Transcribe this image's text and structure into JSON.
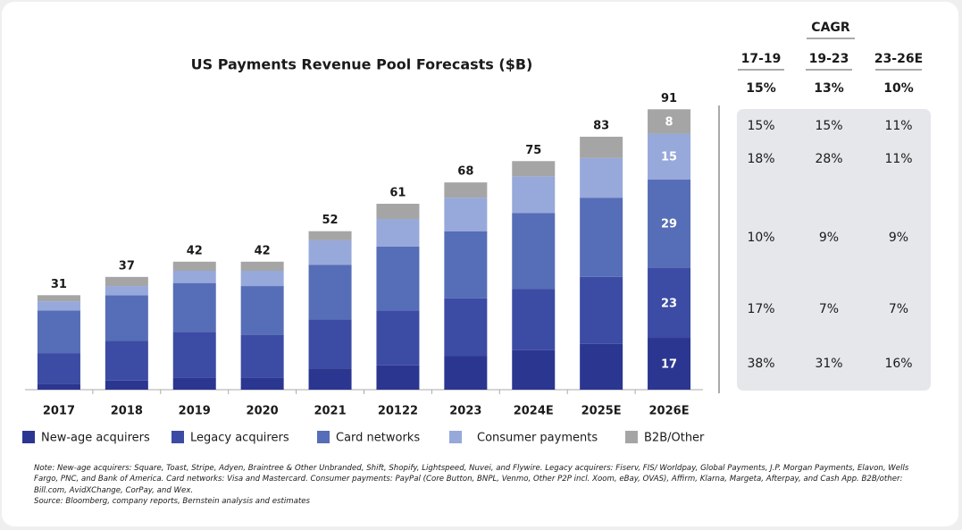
{
  "chart_data": {
    "type": "bar",
    "stacked": true,
    "title": "US Payments Revenue Pool Forecasts ($B)",
    "categories": [
      "2017",
      "2018",
      "2019",
      "2020",
      "2021",
      "20122",
      "2023",
      "2024E",
      "2025E",
      "2026E"
    ],
    "series": [
      {
        "name": "New-age acquirers",
        "color": "#2b3690",
        "values": [
          2,
          3,
          4,
          4,
          7,
          8,
          11,
          13,
          15,
          17
        ]
      },
      {
        "name": "Legacy acquirers",
        "color": "#3c4ba3",
        "values": [
          10,
          13,
          15,
          14,
          16,
          18,
          19,
          20,
          22,
          23
        ]
      },
      {
        "name": "Card networks",
        "color": "#566db7",
        "values": [
          14,
          15,
          16,
          16,
          18,
          21,
          22,
          25,
          26,
          29
        ]
      },
      {
        "name": "Consumer payments",
        "color": "#97a8da",
        "values": [
          3,
          3,
          4,
          5,
          8,
          9,
          11,
          12,
          13,
          15
        ]
      },
      {
        "name": "B2B/Other",
        "color": "#a5a5a5",
        "values": [
          2,
          3,
          3,
          3,
          3,
          5,
          5,
          5,
          7,
          8
        ]
      }
    ],
    "totals": [
      31,
      37,
      42,
      42,
      52,
      61,
      68,
      75,
      83,
      91
    ]
  },
  "cagr_table": {
    "title": "CAGR",
    "columns": [
      "17-19",
      "19-23",
      "23-26E"
    ],
    "total_row": [
      "15%",
      "13%",
      "10%"
    ],
    "rows": [
      [
        "15%",
        "15%",
        "11%"
      ],
      [
        "18%",
        "28%",
        "11%"
      ],
      [
        "10%",
        "9%",
        "9%"
      ],
      [
        "17%",
        "7%",
        "7%"
      ],
      [
        "38%",
        "31%",
        "16%"
      ]
    ]
  },
  "notes": {
    "note": "Note: New-age acquirers: Square, Toast, Stripe, Adyen, Braintree & Other Unbranded, Shift, Shopify, Lightspeed, Nuvei, and Flywire. Legacy acquirers: Fiserv, FIS/ Worldpay, Global Payments, J.P. Morgan Payments, Elavon, Wells Fargo, PNC, and Bank of America. Card networks: Visa and Mastercard. Consumer payments: PayPal (Core Button, BNPL, Venmo, Other P2P incl. Xoom, eBay, OVAS), Affirm, Klarna, Margeta, Afterpay, and Cash App. B2B/other: Bill.com, AvidXChange, CorPay, and Wex.",
    "source": "Source: Bloomberg, company reports, Bernstein analysis and estimates"
  }
}
